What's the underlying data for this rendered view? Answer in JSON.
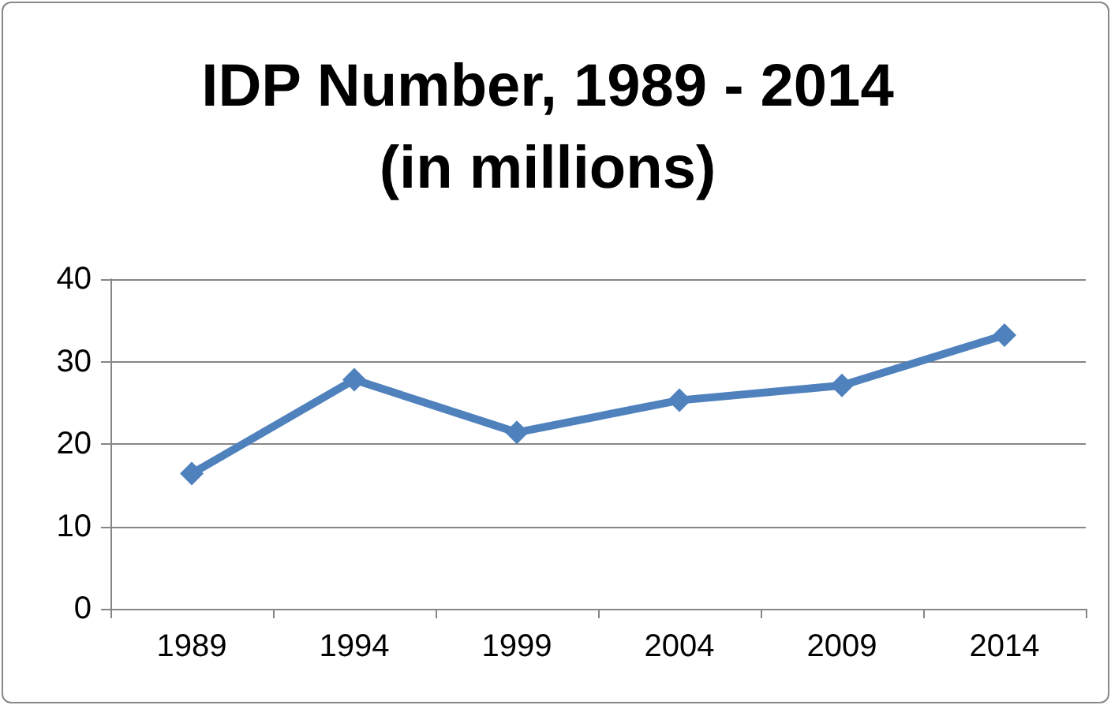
{
  "chart_data": {
    "type": "line",
    "title": "IDP Number, 1989 - 2014\n(in millions)",
    "categories": [
      "1989",
      "1994",
      "1999",
      "2004",
      "2009",
      "2014"
    ],
    "series": [
      {
        "color": "#4f81bd",
        "values": [
          16.4,
          27.8,
          21.4,
          25.3,
          27.1,
          33.2
        ]
      }
    ],
    "ylim": [
      0,
      40
    ],
    "yticks": [
      0,
      10,
      20,
      30,
      40
    ],
    "grid": "y",
    "marker": "diamond",
    "line_style": "solid"
  }
}
